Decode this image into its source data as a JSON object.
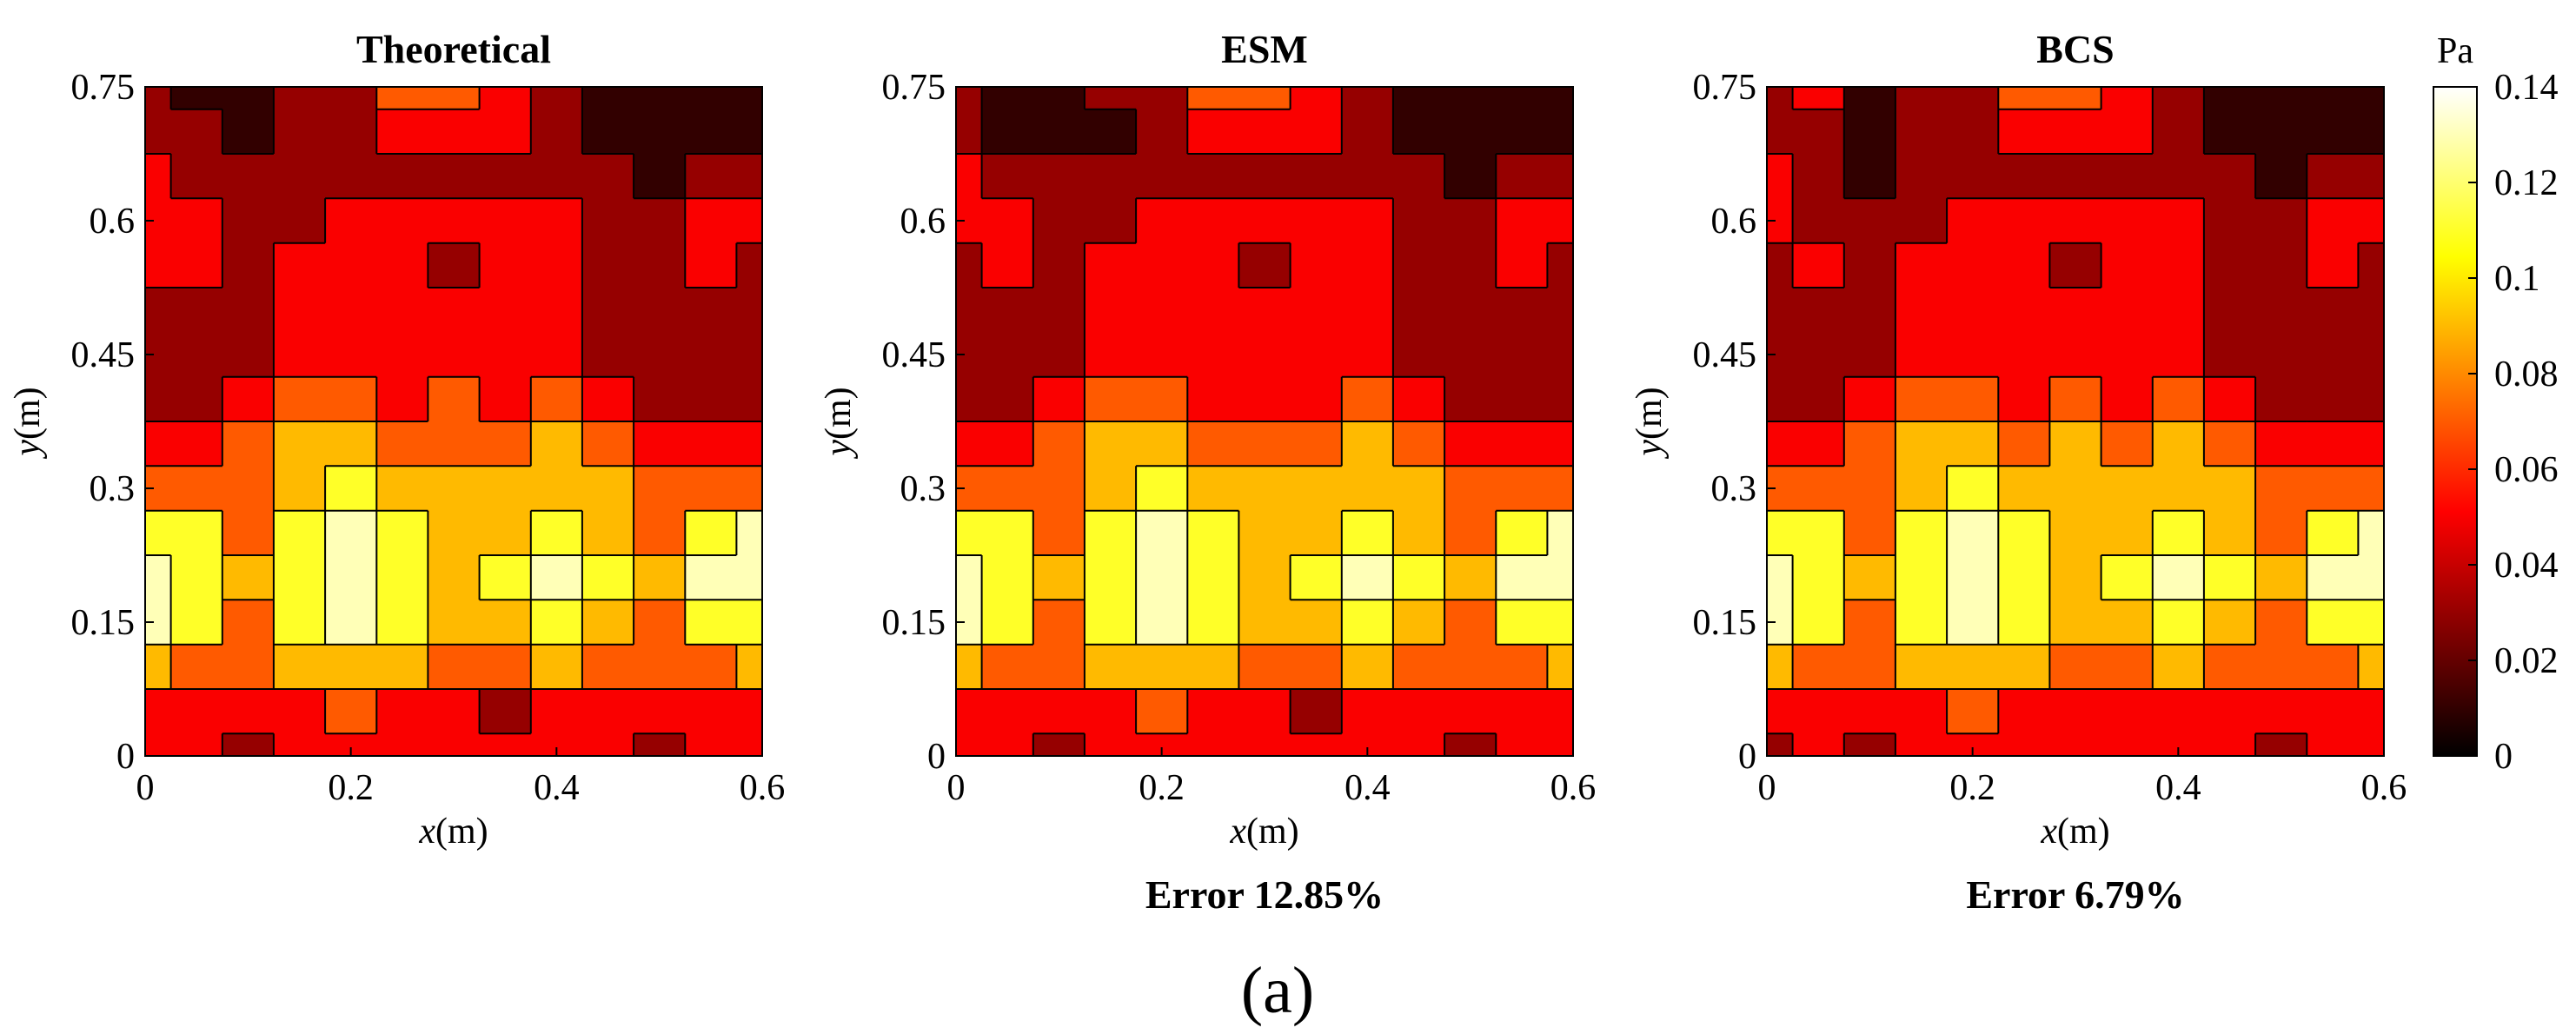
{
  "figure_label": "(a)",
  "colorbar": {
    "unit": "Pa",
    "ticks": [
      "0",
      "0.02",
      "0.04",
      "0.06",
      "0.08",
      "0.1",
      "0.12",
      "0.14"
    ],
    "colormap": "hot",
    "range": [
      0,
      0.14
    ]
  },
  "chart_data": [
    {
      "type": "heatmap",
      "title": "Theoretical",
      "xlabel_var": "x",
      "xlabel_unit": "(m)",
      "ylabel_var": "y",
      "ylabel_unit": "(m)",
      "xticks": [
        "0",
        "0.2",
        "0.4",
        "0.6"
      ],
      "yticks": [
        "0",
        "0.15",
        "0.3",
        "0.45",
        "0.6",
        "0.75"
      ],
      "xlim": [
        0,
        0.6
      ],
      "ylim": [
        0,
        0.75
      ],
      "x": [
        0,
        0.05,
        0.1,
        0.15,
        0.2,
        0.25,
        0.3,
        0.35,
        0.4,
        0.45,
        0.5,
        0.55,
        0.6
      ],
      "y": [
        0.75,
        0.7,
        0.65,
        0.6,
        0.55,
        0.5,
        0.45,
        0.4,
        0.35,
        0.3,
        0.25,
        0.2,
        0.15,
        0.1,
        0.05,
        0
      ],
      "values": [
        [
          0.02,
          0.01,
          0.01,
          0.02,
          0.03,
          0.06,
          0.06,
          0.05,
          0.03,
          0.01,
          0.0,
          0.01,
          0.01
        ],
        [
          0.02,
          0.02,
          0.01,
          0.02,
          0.03,
          0.05,
          0.05,
          0.04,
          0.02,
          0.01,
          0.01,
          0.01,
          0.01
        ],
        [
          0.04,
          0.03,
          0.02,
          0.02,
          0.03,
          0.03,
          0.03,
          0.03,
          0.03,
          0.02,
          0.01,
          0.02,
          0.02
        ],
        [
          0.04,
          0.04,
          0.03,
          0.03,
          0.04,
          0.04,
          0.04,
          0.04,
          0.04,
          0.03,
          0.02,
          0.05,
          0.04
        ],
        [
          0.04,
          0.04,
          0.02,
          0.04,
          0.05,
          0.04,
          0.02,
          0.04,
          0.04,
          0.03,
          0.02,
          0.04,
          0.03
        ],
        [
          0.02,
          0.03,
          0.03,
          0.04,
          0.05,
          0.05,
          0.04,
          0.05,
          0.05,
          0.03,
          0.02,
          0.02,
          0.02
        ],
        [
          0.02,
          0.02,
          0.03,
          0.04,
          0.05,
          0.05,
          0.05,
          0.05,
          0.04,
          0.03,
          0.02,
          0.02,
          0.02
        ],
        [
          0.03,
          0.03,
          0.04,
          0.06,
          0.06,
          0.05,
          0.06,
          0.05,
          0.06,
          0.05,
          0.03,
          0.03,
          0.03
        ],
        [
          0.04,
          0.04,
          0.06,
          0.08,
          0.08,
          0.07,
          0.06,
          0.07,
          0.08,
          0.07,
          0.05,
          0.04,
          0.04
        ],
        [
          0.07,
          0.07,
          0.06,
          0.09,
          0.1,
          0.09,
          0.08,
          0.08,
          0.09,
          0.08,
          0.06,
          0.07,
          0.07
        ],
        [
          0.11,
          0.1,
          0.07,
          0.1,
          0.12,
          0.1,
          0.09,
          0.09,
          0.11,
          0.09,
          0.07,
          0.11,
          0.12
        ],
        [
          0.14,
          0.11,
          0.08,
          0.11,
          0.14,
          0.11,
          0.09,
          0.1,
          0.12,
          0.1,
          0.08,
          0.12,
          0.14
        ],
        [
          0.12,
          0.1,
          0.07,
          0.1,
          0.12,
          0.1,
          0.08,
          0.08,
          0.1,
          0.09,
          0.07,
          0.1,
          0.11
        ],
        [
          0.08,
          0.07,
          0.06,
          0.08,
          0.09,
          0.08,
          0.07,
          0.07,
          0.08,
          0.07,
          0.06,
          0.07,
          0.08
        ],
        [
          0.05,
          0.05,
          0.04,
          0.05,
          0.06,
          0.05,
          0.05,
          0.03,
          0.05,
          0.05,
          0.04,
          0.05,
          0.05
        ],
        [
          0.04,
          0.04,
          0.03,
          0.04,
          0.05,
          0.04,
          0.04,
          0.04,
          0.04,
          0.04,
          0.03,
          0.04,
          0.04
        ]
      ]
    },
    {
      "type": "heatmap",
      "title": "ESM",
      "xlabel_var": "x",
      "xlabel_unit": "(m)",
      "ylabel_var": "y",
      "ylabel_unit": "(m)",
      "xticks": [
        "0",
        "0.2",
        "0.4",
        "0.6"
      ],
      "yticks": [
        "0",
        "0.15",
        "0.3",
        "0.45",
        "0.6",
        "0.75"
      ],
      "xlim": [
        0,
        0.6
      ],
      "ylim": [
        0,
        0.75
      ],
      "error_label": "Error 12.85%",
      "x": [
        0,
        0.05,
        0.1,
        0.15,
        0.2,
        0.25,
        0.3,
        0.35,
        0.4,
        0.45,
        0.5,
        0.55,
        0.6
      ],
      "y": [
        0.75,
        0.7,
        0.65,
        0.6,
        0.55,
        0.5,
        0.45,
        0.4,
        0.35,
        0.3,
        0.25,
        0.2,
        0.15,
        0.1,
        0.05,
        0
      ],
      "values": [
        [
          0.02,
          0.01,
          0.01,
          0.02,
          0.03,
          0.06,
          0.06,
          0.05,
          0.03,
          0.01,
          0.0,
          0.01,
          0.01
        ],
        [
          0.02,
          0.01,
          0.01,
          0.01,
          0.03,
          0.05,
          0.05,
          0.04,
          0.02,
          0.0,
          0.01,
          0.01,
          0.01
        ],
        [
          0.04,
          0.03,
          0.02,
          0.02,
          0.03,
          0.03,
          0.03,
          0.03,
          0.03,
          0.02,
          0.01,
          0.02,
          0.02
        ],
        [
          0.05,
          0.04,
          0.03,
          0.03,
          0.04,
          0.04,
          0.04,
          0.04,
          0.04,
          0.03,
          0.02,
          0.05,
          0.04
        ],
        [
          0.03,
          0.04,
          0.02,
          0.04,
          0.05,
          0.04,
          0.03,
          0.04,
          0.04,
          0.03,
          0.02,
          0.04,
          0.03
        ],
        [
          0.02,
          0.03,
          0.03,
          0.04,
          0.05,
          0.05,
          0.04,
          0.05,
          0.05,
          0.03,
          0.02,
          0.02,
          0.02
        ],
        [
          0.02,
          0.02,
          0.03,
          0.04,
          0.05,
          0.05,
          0.04,
          0.05,
          0.04,
          0.03,
          0.02,
          0.02,
          0.02
        ],
        [
          0.03,
          0.03,
          0.04,
          0.06,
          0.06,
          0.05,
          0.04,
          0.05,
          0.06,
          0.05,
          0.03,
          0.03,
          0.03
        ],
        [
          0.04,
          0.04,
          0.06,
          0.08,
          0.08,
          0.07,
          0.06,
          0.07,
          0.08,
          0.07,
          0.05,
          0.04,
          0.04
        ],
        [
          0.07,
          0.07,
          0.06,
          0.09,
          0.1,
          0.09,
          0.08,
          0.08,
          0.09,
          0.08,
          0.06,
          0.07,
          0.07
        ],
        [
          0.11,
          0.1,
          0.07,
          0.1,
          0.12,
          0.1,
          0.09,
          0.09,
          0.11,
          0.09,
          0.07,
          0.11,
          0.12
        ],
        [
          0.14,
          0.11,
          0.08,
          0.11,
          0.14,
          0.11,
          0.09,
          0.1,
          0.12,
          0.1,
          0.08,
          0.12,
          0.14
        ],
        [
          0.12,
          0.1,
          0.07,
          0.1,
          0.12,
          0.1,
          0.08,
          0.08,
          0.1,
          0.09,
          0.07,
          0.1,
          0.11
        ],
        [
          0.08,
          0.07,
          0.06,
          0.08,
          0.09,
          0.08,
          0.07,
          0.07,
          0.08,
          0.07,
          0.06,
          0.07,
          0.08
        ],
        [
          0.05,
          0.05,
          0.04,
          0.05,
          0.06,
          0.05,
          0.05,
          0.03,
          0.05,
          0.05,
          0.04,
          0.05,
          0.05
        ],
        [
          0.04,
          0.04,
          0.03,
          0.04,
          0.05,
          0.04,
          0.04,
          0.04,
          0.04,
          0.04,
          0.03,
          0.04,
          0.04
        ]
      ]
    },
    {
      "type": "heatmap",
      "title": "BCS",
      "xlabel_var": "x",
      "xlabel_unit": "(m)",
      "ylabel_var": "y",
      "ylabel_unit": "(m)",
      "xticks": [
        "0",
        "0.2",
        "0.4",
        "0.6"
      ],
      "yticks": [
        "0",
        "0.15",
        "0.3",
        "0.45",
        "0.6",
        "0.75"
      ],
      "xlim": [
        0,
        0.6
      ],
      "ylim": [
        0,
        0.75
      ],
      "error_label": "Error 6.79%",
      "x": [
        0,
        0.05,
        0.1,
        0.15,
        0.2,
        0.25,
        0.3,
        0.35,
        0.4,
        0.45,
        0.5,
        0.55,
        0.6
      ],
      "y": [
        0.75,
        0.7,
        0.65,
        0.6,
        0.55,
        0.5,
        0.45,
        0.4,
        0.35,
        0.3,
        0.25,
        0.2,
        0.15,
        0.1,
        0.05,
        0
      ],
      "values": [
        [
          0.02,
          0.05,
          0.01,
          0.02,
          0.03,
          0.06,
          0.06,
          0.05,
          0.03,
          0.01,
          0.0,
          0.01,
          0.01
        ],
        [
          0.02,
          0.02,
          0.01,
          0.02,
          0.03,
          0.05,
          0.05,
          0.04,
          0.02,
          0.01,
          0.01,
          0.01,
          0.01
        ],
        [
          0.04,
          0.02,
          0.01,
          0.02,
          0.03,
          0.03,
          0.03,
          0.03,
          0.03,
          0.02,
          0.01,
          0.02,
          0.02
        ],
        [
          0.05,
          0.03,
          0.02,
          0.03,
          0.04,
          0.04,
          0.04,
          0.04,
          0.04,
          0.03,
          0.02,
          0.05,
          0.04
        ],
        [
          0.03,
          0.04,
          0.02,
          0.04,
          0.05,
          0.04,
          0.03,
          0.04,
          0.04,
          0.03,
          0.02,
          0.04,
          0.03
        ],
        [
          0.02,
          0.03,
          0.03,
          0.04,
          0.05,
          0.05,
          0.04,
          0.05,
          0.05,
          0.03,
          0.02,
          0.02,
          0.02
        ],
        [
          0.02,
          0.02,
          0.03,
          0.04,
          0.05,
          0.05,
          0.05,
          0.05,
          0.04,
          0.03,
          0.02,
          0.02,
          0.02
        ],
        [
          0.03,
          0.03,
          0.04,
          0.06,
          0.06,
          0.05,
          0.06,
          0.05,
          0.06,
          0.05,
          0.03,
          0.03,
          0.03
        ],
        [
          0.04,
          0.04,
          0.06,
          0.08,
          0.08,
          0.07,
          0.08,
          0.07,
          0.08,
          0.07,
          0.05,
          0.04,
          0.04
        ],
        [
          0.07,
          0.07,
          0.06,
          0.09,
          0.1,
          0.09,
          0.08,
          0.08,
          0.09,
          0.08,
          0.06,
          0.07,
          0.07
        ],
        [
          0.11,
          0.1,
          0.07,
          0.1,
          0.12,
          0.1,
          0.09,
          0.09,
          0.11,
          0.09,
          0.07,
          0.11,
          0.12
        ],
        [
          0.14,
          0.11,
          0.08,
          0.11,
          0.14,
          0.11,
          0.09,
          0.1,
          0.12,
          0.1,
          0.08,
          0.12,
          0.14
        ],
        [
          0.12,
          0.1,
          0.07,
          0.1,
          0.12,
          0.1,
          0.08,
          0.08,
          0.1,
          0.09,
          0.07,
          0.1,
          0.11
        ],
        [
          0.08,
          0.07,
          0.06,
          0.08,
          0.09,
          0.08,
          0.07,
          0.07,
          0.08,
          0.07,
          0.06,
          0.07,
          0.08
        ],
        [
          0.05,
          0.05,
          0.04,
          0.05,
          0.06,
          0.05,
          0.05,
          0.04,
          0.05,
          0.05,
          0.04,
          0.05,
          0.05
        ],
        [
          0.03,
          0.04,
          0.03,
          0.04,
          0.05,
          0.04,
          0.04,
          0.04,
          0.04,
          0.04,
          0.03,
          0.04,
          0.04
        ]
      ]
    }
  ]
}
